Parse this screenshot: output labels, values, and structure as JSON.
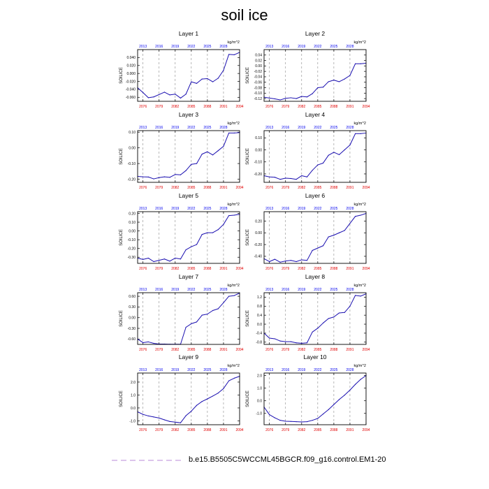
{
  "figure": {
    "title": "soil ice",
    "legend_label": "b.e15.B5505C5WCCML45BGCR.f09_g16.control.EM1-20",
    "colors": {
      "line": "#1a0fb0",
      "bottom_ticks": "#e00000",
      "top_ticks": "#0000ee",
      "legend_line": "#c8a0e0",
      "vgrid": "#888888"
    }
  },
  "chart_data": [
    {
      "type": "line",
      "title": "Layer 1",
      "ylabel": "SOILICE",
      "units": "kg/m^2",
      "ylim": [
        -0.07,
        0.06
      ],
      "yticks": [
        -0.06,
        -0.04,
        -0.02,
        0.0,
        0.02,
        0.04
      ],
      "ytick_labels": [
        "-0.060",
        "-0.040",
        "-0.020",
        "0.000",
        "0.020",
        "0.040"
      ],
      "x": [
        2075,
        2076,
        2077,
        2078,
        2079,
        2080,
        2081,
        2082,
        2083,
        2084,
        2085,
        2086,
        2087,
        2088,
        2089,
        2090,
        2091,
        2092,
        2093,
        2094
      ],
      "values": [
        -0.036,
        -0.048,
        -0.061,
        -0.059,
        -0.053,
        -0.047,
        -0.054,
        -0.052,
        -0.062,
        -0.052,
        -0.021,
        -0.025,
        -0.014,
        -0.013,
        -0.021,
        -0.012,
        0.008,
        0.048,
        0.047,
        0.053
      ],
      "xticks_bottom": [
        "2076",
        "2079",
        "2082",
        "2085",
        "2088",
        "2091",
        "2094"
      ],
      "xticks_top": [
        "2013",
        "2016",
        "2019",
        "2022",
        "2025",
        "2028"
      ]
    },
    {
      "type": "line",
      "title": "Layer 2",
      "ylabel": "SOILICE",
      "units": "kg/m^2",
      "ylim": [
        -0.13,
        0.06
      ],
      "yticks": [
        -0.12,
        -0.1,
        -0.08,
        -0.06,
        -0.04,
        -0.02,
        0.0,
        0.02,
        0.04
      ],
      "ytick_labels": [
        "-0.12",
        "-0.10",
        "-0.08",
        "-0.06",
        "-0.04",
        "-0.02",
        "0.00",
        "0.02",
        "0.04"
      ],
      "x": [
        2075,
        2076,
        2077,
        2078,
        2079,
        2080,
        2081,
        2082,
        2083,
        2084,
        2085,
        2086,
        2087,
        2088,
        2089,
        2090,
        2091,
        2092,
        2093,
        2094
      ],
      "values": [
        -0.115,
        -0.118,
        -0.121,
        -0.125,
        -0.119,
        -0.117,
        -0.12,
        -0.112,
        -0.114,
        -0.102,
        -0.08,
        -0.078,
        -0.058,
        -0.052,
        -0.058,
        -0.048,
        -0.035,
        0.008,
        0.008,
        0.01
      ],
      "xticks_bottom": [
        "2076",
        "2079",
        "2082",
        "2085",
        "2088",
        "2091",
        "2094"
      ],
      "xticks_top": [
        "2013",
        "2016",
        "2019",
        "2022",
        "2025",
        "2028"
      ]
    },
    {
      "type": "line",
      "title": "Layer 3",
      "ylabel": "SOILICE",
      "units": "kg/m^2",
      "ylim": [
        -0.22,
        0.11
      ],
      "yticks": [
        -0.2,
        -0.1,
        0.0,
        0.1
      ],
      "ytick_labels": [
        "-0.20",
        "-0.10",
        "0.00",
        "0.10"
      ],
      "x": [
        2075,
        2076,
        2077,
        2078,
        2079,
        2080,
        2081,
        2082,
        2083,
        2084,
        2085,
        2086,
        2087,
        2088,
        2089,
        2090,
        2091,
        2092,
        2093,
        2094
      ],
      "values": [
        -0.182,
        -0.185,
        -0.186,
        -0.198,
        -0.19,
        -0.185,
        -0.188,
        -0.17,
        -0.172,
        -0.145,
        -0.105,
        -0.1,
        -0.04,
        -0.025,
        -0.045,
        -0.018,
        0.01,
        0.095,
        0.095,
        0.098
      ],
      "xticks_bottom": [
        "2076",
        "2079",
        "2082",
        "2085",
        "2088",
        "2091",
        "2094"
      ],
      "xticks_top": [
        "2013",
        "2016",
        "2019",
        "2022",
        "2025",
        "2028"
      ]
    },
    {
      "type": "line",
      "title": "Layer 4",
      "ylabel": "SOILICE",
      "units": "kg/m^2",
      "ylim": [
        -0.27,
        0.16
      ],
      "yticks": [
        -0.2,
        -0.1,
        0.0,
        0.1
      ],
      "ytick_labels": [
        "-0.20",
        "-0.10",
        "0.00",
        "0.10"
      ],
      "x": [
        2075,
        2076,
        2077,
        2078,
        2079,
        2080,
        2081,
        2082,
        2083,
        2084,
        2085,
        2086,
        2087,
        2088,
        2089,
        2090,
        2091,
        2092,
        2093,
        2094
      ],
      "values": [
        -0.215,
        -0.225,
        -0.228,
        -0.245,
        -0.235,
        -0.238,
        -0.245,
        -0.215,
        -0.225,
        -0.17,
        -0.125,
        -0.11,
        -0.045,
        -0.02,
        -0.04,
        0.0,
        0.04,
        0.135,
        0.135,
        0.14
      ],
      "xticks_bottom": [
        "2076",
        "2079",
        "2082",
        "2085",
        "2088",
        "2091",
        "2094"
      ],
      "xticks_top": [
        "2013",
        "2016",
        "2019",
        "2022",
        "2025",
        "2028"
      ]
    },
    {
      "type": "line",
      "title": "Layer 5",
      "ylabel": "SOILICE",
      "units": "kg/m^2",
      "ylim": [
        -0.37,
        0.22
      ],
      "yticks": [
        -0.3,
        -0.2,
        -0.1,
        0.0,
        0.1,
        0.2
      ],
      "ytick_labels": [
        "-0.30",
        "-0.20",
        "-0.10",
        "0.00",
        "0.10",
        "0.20"
      ],
      "x": [
        2075,
        2076,
        2077,
        2078,
        2079,
        2080,
        2081,
        2082,
        2083,
        2084,
        2085,
        2086,
        2087,
        2088,
        2089,
        2090,
        2091,
        2092,
        2093,
        2094
      ],
      "values": [
        -0.31,
        -0.325,
        -0.31,
        -0.35,
        -0.335,
        -0.32,
        -0.345,
        -0.31,
        -0.32,
        -0.215,
        -0.18,
        -0.155,
        -0.04,
        -0.02,
        -0.02,
        0.015,
        0.075,
        0.175,
        0.18,
        0.19
      ],
      "xticks_bottom": [
        "2076",
        "2079",
        "2082",
        "2085",
        "2088",
        "2091",
        "2094"
      ],
      "xticks_top": [
        "2013",
        "2016",
        "2019",
        "2022",
        "2025",
        "2028"
      ]
    },
    {
      "type": "line",
      "title": "Layer 6",
      "ylabel": "SOILICE",
      "units": "kg/m^2",
      "ylim": [
        -0.52,
        0.36
      ],
      "yticks": [
        -0.4,
        -0.2,
        0.0,
        0.2
      ],
      "ytick_labels": [
        "-0.40",
        "-0.20",
        "0.00",
        "0.20"
      ],
      "x": [
        2075,
        2076,
        2077,
        2078,
        2079,
        2080,
        2081,
        2082,
        2083,
        2084,
        2085,
        2086,
        2087,
        2088,
        2089,
        2090,
        2091,
        2092,
        2093,
        2094
      ],
      "values": [
        -0.44,
        -0.49,
        -0.45,
        -0.5,
        -0.48,
        -0.47,
        -0.49,
        -0.46,
        -0.47,
        -0.3,
        -0.26,
        -0.22,
        -0.07,
        -0.04,
        0.0,
        0.04,
        0.16,
        0.28,
        0.3,
        0.33
      ],
      "xticks_bottom": [
        "2076",
        "2079",
        "2082",
        "2085",
        "2088",
        "2091",
        "2094"
      ],
      "xticks_top": [
        "2013",
        "2016",
        "2019",
        "2022",
        "2025",
        "2028"
      ]
    },
    {
      "type": "line",
      "title": "Layer 7",
      "ylabel": "SOILICE",
      "units": "kg/m^2",
      "ylim": [
        -0.75,
        0.7
      ],
      "yticks": [
        -0.6,
        -0.3,
        0.0,
        0.3,
        0.6
      ],
      "ytick_labels": [
        "-0.60",
        "-0.30",
        "0.00",
        "0.30",
        "0.60"
      ],
      "x": [
        2075,
        2076,
        2077,
        2078,
        2079,
        2080,
        2081,
        2082,
        2083,
        2084,
        2085,
        2086,
        2087,
        2088,
        2089,
        2090,
        2091,
        2092,
        2093,
        2094
      ],
      "values": [
        -0.6,
        -0.7,
        -0.68,
        -0.72,
        -0.74,
        -0.74,
        -0.745,
        -0.745,
        -0.745,
        -0.27,
        -0.17,
        -0.12,
        0.07,
        0.1,
        0.2,
        0.25,
        0.42,
        0.6,
        0.62,
        0.69
      ],
      "xticks_bottom": [
        "2076",
        "2079",
        "2082",
        "2085",
        "2088",
        "2091",
        "2094"
      ],
      "xticks_top": [
        "2013",
        "2016",
        "2019",
        "2022",
        "2025",
        "2028"
      ]
    },
    {
      "type": "line",
      "title": "Layer 8",
      "ylabel": "SOILICE",
      "units": "kg/m^2",
      "ylim": [
        -0.9,
        1.4
      ],
      "yticks": [
        -0.8,
        -0.4,
        0.0,
        0.4,
        0.8,
        1.2
      ],
      "ytick_labels": [
        "-0.8",
        "-0.4",
        "0.0",
        "0.4",
        "0.8",
        "1.2"
      ],
      "x": [
        2075,
        2076,
        2077,
        2078,
        2079,
        2080,
        2081,
        2082,
        2083,
        2084,
        2085,
        2086,
        2087,
        2088,
        2089,
        2090,
        2091,
        2092,
        2093,
        2094
      ],
      "values": [
        -0.4,
        -0.62,
        -0.65,
        -0.75,
        -0.78,
        -0.78,
        -0.83,
        -0.85,
        -0.83,
        -0.35,
        -0.18,
        0.05,
        0.25,
        0.32,
        0.5,
        0.52,
        0.8,
        1.28,
        1.25,
        1.35
      ],
      "xticks_bottom": [
        "2076",
        "2079",
        "2082",
        "2085",
        "2088",
        "2091",
        "2094"
      ],
      "xticks_top": [
        "2013",
        "2016",
        "2019",
        "2022",
        "2025",
        "2028"
      ]
    },
    {
      "type": "line",
      "title": "Layer 9",
      "ylabel": "SOILICE",
      "units": "kg/m^2",
      "ylim": [
        -1.3,
        2.7
      ],
      "yticks": [
        -1.0,
        0.0,
        1.0,
        2.0
      ],
      "ytick_labels": [
        "-1.0",
        "0.0",
        "1.0",
        "2.0"
      ],
      "x": [
        2075,
        2076,
        2077,
        2078,
        2079,
        2080,
        2081,
        2082,
        2083,
        2084,
        2085,
        2086,
        2087,
        2088,
        2089,
        2090,
        2091,
        2092,
        2093,
        2094
      ],
      "values": [
        -0.3,
        -0.5,
        -0.62,
        -0.7,
        -0.78,
        -0.92,
        -1.05,
        -1.1,
        -1.15,
        -0.6,
        -0.25,
        0.2,
        0.5,
        0.7,
        0.92,
        1.15,
        1.5,
        2.1,
        2.3,
        2.45
      ],
      "xticks_bottom": [
        "2076",
        "2079",
        "2082",
        "2085",
        "2088",
        "2091",
        "2094"
      ],
      "xticks_top": [
        "2013",
        "2016",
        "2019",
        "2022",
        "2025",
        "2028"
      ]
    },
    {
      "type": "line",
      "title": "Layer 10",
      "ylabel": "SOILICE",
      "units": "kg/m^2",
      "ylim": [
        -1.9,
        2.2
      ],
      "yticks": [
        -1.0,
        0.0,
        1.0,
        2.0
      ],
      "ytick_labels": [
        "-1.0",
        "0.0",
        "1.0",
        "2.0"
      ],
      "x": [
        2075,
        2076,
        2077,
        2078,
        2079,
        2080,
        2081,
        2082,
        2083,
        2084,
        2085,
        2086,
        2087,
        2088,
        2089,
        2090,
        2091,
        2092,
        2093,
        2094
      ],
      "values": [
        -0.5,
        -1.1,
        -1.35,
        -1.55,
        -1.62,
        -1.64,
        -1.66,
        -1.68,
        -1.66,
        -1.55,
        -1.4,
        -1.05,
        -0.7,
        -0.3,
        0.1,
        0.45,
        0.85,
        1.3,
        1.7,
        2.0
      ],
      "xticks_bottom": [
        "2076",
        "2079",
        "2082",
        "2085",
        "2088",
        "2091",
        "2094"
      ],
      "xticks_top": [
        "2013",
        "2016",
        "2019",
        "2022",
        "2025",
        "2028"
      ]
    }
  ]
}
